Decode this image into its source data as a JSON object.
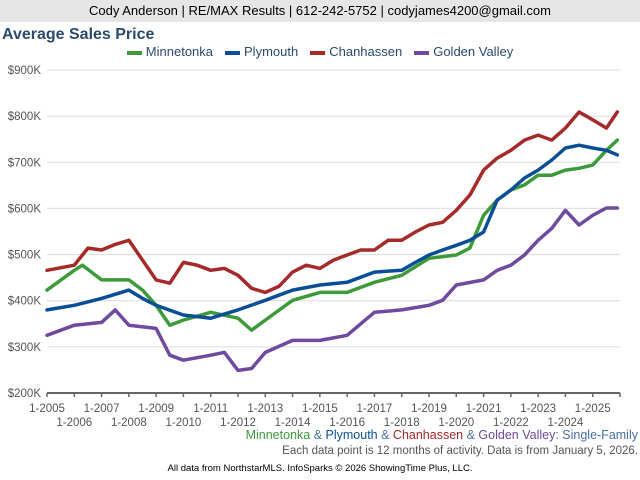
{
  "header": {
    "contact": "Cody Anderson | RE/MAX Results | 612-242-5752 | codyjames4200@gmail.com"
  },
  "chart_data": {
    "type": "line",
    "title": "Average Sales Price",
    "ylim": [
      200,
      900
    ],
    "xlim": [
      2005,
      2026
    ],
    "yticks": [
      {
        "v": 900,
        "label": "$900K"
      },
      {
        "v": 800,
        "label": "$800K"
      },
      {
        "v": 700,
        "label": "$700K"
      },
      {
        "v": 600,
        "label": "$600K"
      },
      {
        "v": 500,
        "label": "$500K"
      },
      {
        "v": 400,
        "label": "$400K"
      },
      {
        "v": 300,
        "label": "$300K"
      },
      {
        "v": 200,
        "label": "$200K"
      }
    ],
    "xticks": [
      "1-2005",
      "1-2006",
      "1-2007",
      "1-2008",
      "1-2009",
      "1-2010",
      "1-2011",
      "1-2012",
      "1-2013",
      "1-2014",
      "1-2015",
      "1-2016",
      "1-2017",
      "1-2018",
      "1-2019",
      "1-2020",
      "1-2021",
      "1-2022",
      "1-2023",
      "1-2024",
      "1-2025"
    ],
    "series": [
      {
        "name": "Minnetonka",
        "color": "#3d9a3a",
        "x": [
          2005,
          2006,
          2006.3,
          2007,
          2008,
          2008.5,
          2009,
          2009.5,
          2010,
          2011,
          2012,
          2012.5,
          2013,
          2014,
          2015,
          2016,
          2017,
          2018,
          2019,
          2020,
          2020.5,
          2021,
          2021.5,
          2022,
          2022.5,
          2023,
          2023.5,
          2024,
          2024.5,
          2025,
          2025.5,
          2025.9
        ],
        "values": [
          423,
          466,
          477,
          445,
          445,
          423,
          390,
          347,
          358,
          375,
          362,
          336,
          358,
          401,
          418,
          418,
          440,
          455,
          492,
          499,
          514,
          585,
          618,
          640,
          651,
          672,
          672,
          683,
          687,
          694,
          726,
          748
        ]
      },
      {
        "name": "Plymouth",
        "color": "#0a4f96",
        "x": [
          2005,
          2006,
          2007,
          2008,
          2008.5,
          2009,
          2010,
          2011,
          2012,
          2013,
          2013.5,
          2014,
          2015,
          2016,
          2017,
          2018,
          2018.5,
          2019,
          2019.5,
          2020,
          2020.5,
          2021,
          2021.5,
          2022,
          2022.5,
          2023,
          2023.5,
          2024,
          2024.5,
          2025,
          2025.5,
          2025.9
        ],
        "values": [
          380,
          390,
          405,
          423,
          405,
          390,
          369,
          362,
          380,
          401,
          412,
          423,
          434,
          440,
          462,
          466,
          483,
          499,
          510,
          520,
          531,
          549,
          618,
          640,
          666,
          683,
          705,
          731,
          737,
          731,
          726,
          716
        ]
      },
      {
        "name": "Chanhassen",
        "color": "#a52a2a",
        "x": [
          2005,
          2006,
          2006.5,
          2007,
          2007.5,
          2008,
          2008.5,
          2009,
          2009.5,
          2010,
          2010.5,
          2011,
          2011.5,
          2012,
          2012.5,
          2013,
          2013.5,
          2014,
          2014.5,
          2015,
          2015.5,
          2016,
          2016.5,
          2017,
          2017.5,
          2018,
          2018.5,
          2019,
          2019.5,
          2020,
          2020.5,
          2021,
          2021.5,
          2022,
          2022.5,
          2023,
          2023.5,
          2024,
          2024.5,
          2025,
          2025.5,
          2025.9
        ],
        "values": [
          466,
          477,
          514,
          510,
          522,
          531,
          488,
          445,
          438,
          483,
          477,
          466,
          470,
          455,
          427,
          418,
          431,
          462,
          477,
          470,
          488,
          499,
          510,
          510,
          531,
          531,
          549,
          564,
          570,
          596,
          629,
          683,
          709,
          726,
          748,
          759,
          748,
          774,
          809,
          792,
          774,
          809
        ]
      },
      {
        "name": "Golden Valley",
        "color": "#6f4a9e",
        "x": [
          2005,
          2006,
          2007,
          2007.5,
          2008,
          2009,
          2009.5,
          2010,
          2011,
          2011.5,
          2012,
          2012.5,
          2013,
          2014,
          2015,
          2016,
          2017,
          2018,
          2019,
          2019.5,
          2020,
          2021,
          2021.5,
          2022,
          2022.5,
          2023,
          2023.5,
          2024,
          2024.5,
          2025,
          2025.5,
          2025.9
        ],
        "values": [
          325,
          347,
          353,
          380,
          347,
          340,
          282,
          271,
          282,
          288,
          249,
          253,
          288,
          314,
          314,
          325,
          375,
          380,
          390,
          401,
          434,
          445,
          466,
          477,
          499,
          531,
          557,
          596,
          564,
          585,
          601,
          601
        ]
      }
    ],
    "subtitle_parts": [
      {
        "text": "Minnetonka",
        "color": "#3d9a3a"
      },
      {
        "text": " & ",
        "color": "#4a6fa5"
      },
      {
        "text": "Plymouth",
        "color": "#0a4f96"
      },
      {
        "text": " & ",
        "color": "#4a6fa5"
      },
      {
        "text": "Chanhassen",
        "color": "#a52a2a"
      },
      {
        "text": " & ",
        "color": "#4a6fa5"
      },
      {
        "text": "Golden Valley",
        "color": "#6f4a9e"
      },
      {
        "text": ": Single-Family",
        "color": "#4a6fa5"
      }
    ],
    "legend_position": "top-center",
    "grid": true
  },
  "footer": {
    "note": "Each data point is 12 months of activity. Data is from January 5, 2026.",
    "credit": "All data from NorthstarMLS. InfoSparks © 2026 ShowingTime Plus, LLC."
  }
}
